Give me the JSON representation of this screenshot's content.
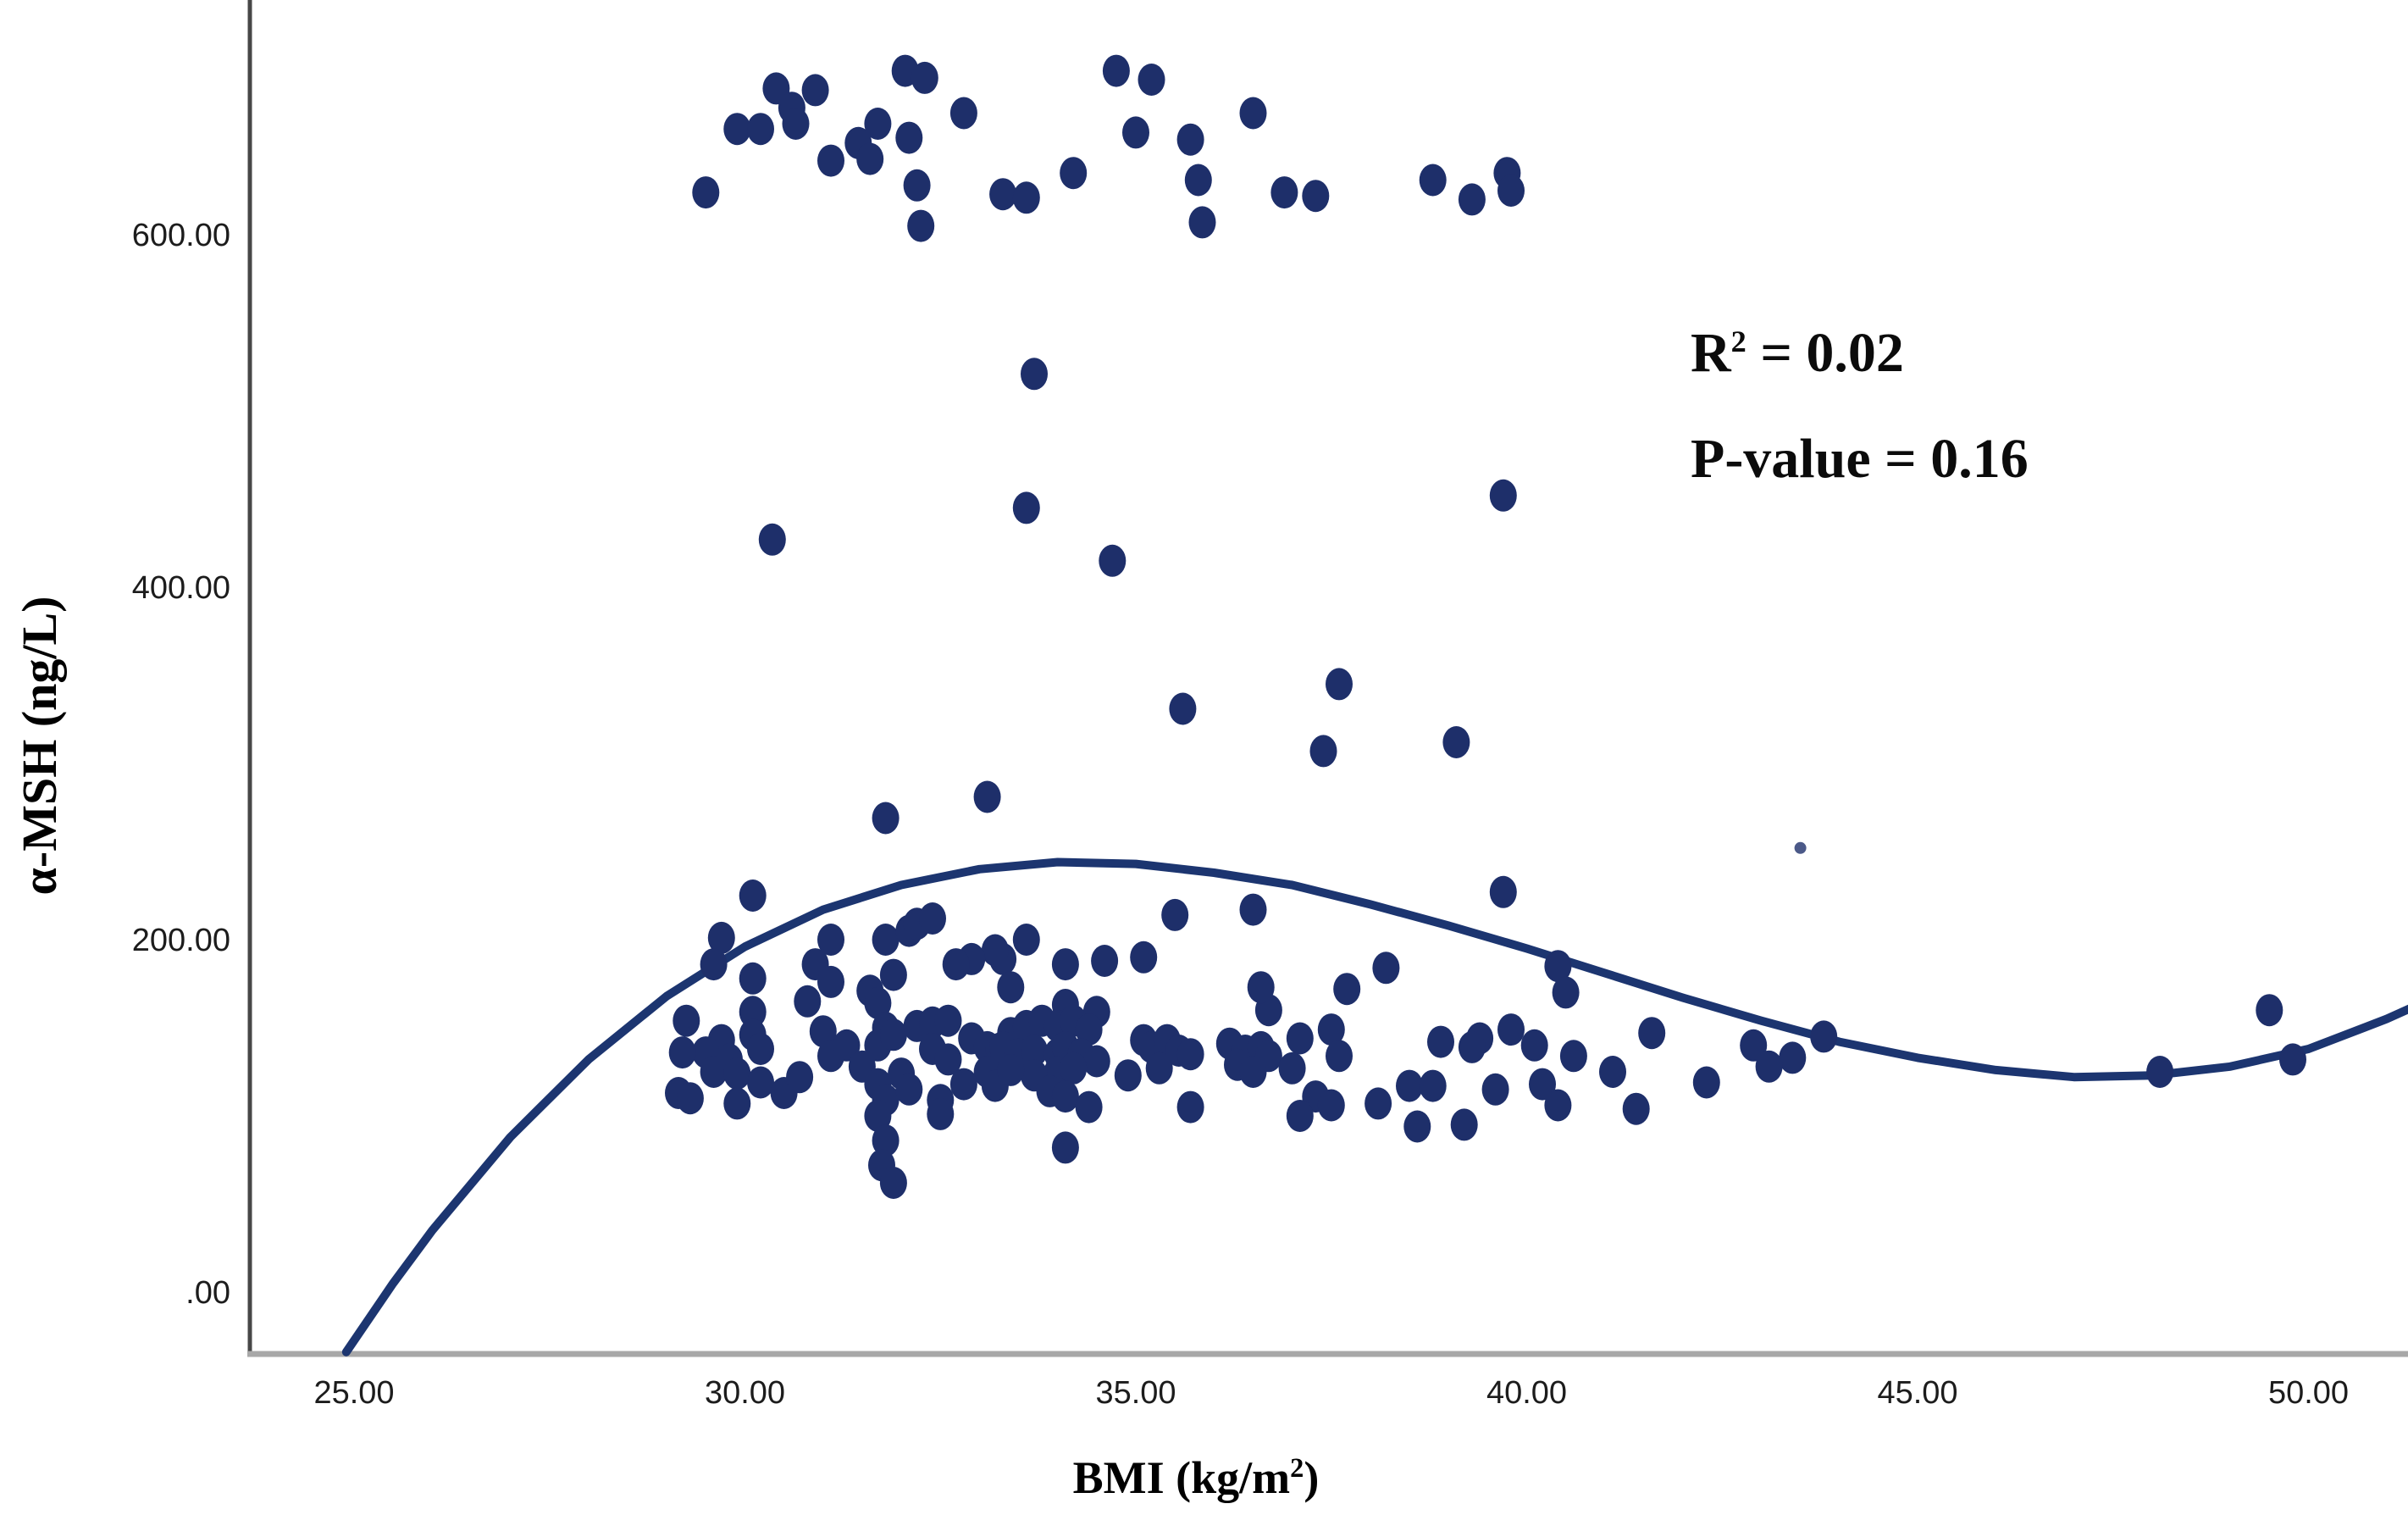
{
  "chart_data": {
    "type": "scatter",
    "title": "",
    "xlabel": "BMI (kg/m²)",
    "xlabel_base": "BMI (kg/m",
    "xlabel_sup": "2",
    "xlabel_close": ")",
    "ylabel": "α-MSH (ng/L)",
    "xlim": [
      23.6,
      51.3
    ],
    "ylim": [
      -35,
      735
    ],
    "grid": false,
    "legend": false,
    "x_ticks": {
      "values": [
        25,
        30,
        35,
        40,
        45,
        50
      ],
      "labels": [
        "25.00",
        "30.00",
        "35.00",
        "40.00",
        "45.00",
        "50.00"
      ]
    },
    "y_ticks": {
      "values": [
        0,
        200,
        400,
        600
      ],
      "labels": [
        ".00",
        "200.00",
        "400.00",
        "600.00"
      ]
    },
    "annotation": {
      "r_label": "R",
      "r_exponent": "2",
      "r_rest": " = 0.02",
      "p_text": "P-value = 0.16",
      "full_text": "R² = 0.02 ; P-value = 0.16"
    },
    "colors": {
      "point": "#1e2f6a",
      "curve": "#1c3570",
      "x_axis": "#a8a8a8",
      "y_axis": "#474747",
      "tick_label": "#1c1c1c"
    },
    "marker": {
      "shape": "ellipse",
      "rx": 16,
      "ry": 19
    },
    "points": [
      [
        29.5,
        624
      ],
      [
        29.9,
        660
      ],
      [
        30.2,
        660
      ],
      [
        30.4,
        683
      ],
      [
        30.6,
        672
      ],
      [
        30.65,
        663
      ],
      [
        30.9,
        682
      ],
      [
        31.1,
        642
      ],
      [
        31.45,
        652
      ],
      [
        31.6,
        643
      ],
      [
        31.7,
        663
      ],
      [
        32.05,
        693
      ],
      [
        32.3,
        689
      ],
      [
        32.1,
        655
      ],
      [
        32.2,
        628
      ],
      [
        32.25,
        605
      ],
      [
        32.8,
        669
      ],
      [
        33.3,
        623
      ],
      [
        33.6,
        621
      ],
      [
        34.2,
        635
      ],
      [
        34.75,
        693
      ],
      [
        35.2,
        688
      ],
      [
        35.0,
        658
      ],
      [
        35.7,
        654
      ],
      [
        35.8,
        631
      ],
      [
        35.85,
        607
      ],
      [
        36.5,
        669
      ],
      [
        36.9,
        624
      ],
      [
        37.3,
        622
      ],
      [
        38.8,
        631
      ],
      [
        39.3,
        620
      ],
      [
        39.75,
        635
      ],
      [
        39.8,
        625
      ],
      [
        33.7,
        521
      ],
      [
        33.6,
        445
      ],
      [
        30.35,
        427
      ],
      [
        34.7,
        415
      ],
      [
        39.7,
        452
      ],
      [
        35.6,
        331
      ],
      [
        37.6,
        345
      ],
      [
        37.4,
        307
      ],
      [
        39.1,
        312
      ],
      [
        33.1,
        281
      ],
      [
        31.8,
        269
      ],
      [
        30.1,
        225
      ],
      [
        29.7,
        201
      ],
      [
        31.1,
        200
      ],
      [
        31.8,
        200
      ],
      [
        32.1,
        205
      ],
      [
        32.2,
        209
      ],
      [
        32.4,
        212
      ],
      [
        33.6,
        200
      ],
      [
        35.5,
        214
      ],
      [
        36.5,
        217
      ],
      [
        39.7,
        227
      ],
      [
        33.3,
        189
      ],
      [
        34.1,
        186
      ],
      [
        34.6,
        188
      ],
      [
        35.1,
        190
      ],
      [
        33.2,
        194
      ],
      [
        32.9,
        189
      ],
      [
        32.7,
        186
      ],
      [
        30.1,
        178
      ],
      [
        29.6,
        186
      ],
      [
        30.9,
        186
      ],
      [
        31.1,
        176
      ],
      [
        31.9,
        180
      ],
      [
        38.2,
        184
      ],
      [
        40.4,
        185
      ],
      [
        40.5,
        170
      ],
      [
        37.7,
        172
      ],
      [
        36.7,
        160
      ],
      [
        33.4,
        173
      ],
      [
        36.6,
        173
      ],
      [
        34.1,
        163
      ],
      [
        34.5,
        159
      ],
      [
        30.8,
        165
      ],
      [
        31.6,
        171
      ],
      [
        31.7,
        164
      ],
      [
        30.1,
        159
      ],
      [
        30.1,
        146
      ],
      [
        29.7,
        143
      ],
      [
        29.5,
        136
      ],
      [
        29.8,
        132
      ],
      [
        30.2,
        138
      ],
      [
        31.0,
        148
      ],
      [
        31.1,
        134
      ],
      [
        31.3,
        140
      ],
      [
        31.5,
        128
      ],
      [
        31.7,
        140
      ],
      [
        31.8,
        150
      ],
      [
        31.9,
        146
      ],
      [
        32.2,
        151
      ],
      [
        32.4,
        153
      ],
      [
        32.6,
        154
      ],
      [
        32.4,
        138
      ],
      [
        32.6,
        132
      ],
      [
        32.9,
        144
      ],
      [
        33.1,
        139
      ],
      [
        33.25,
        138
      ],
      [
        33.4,
        147
      ],
      [
        33.6,
        151
      ],
      [
        33.8,
        154
      ],
      [
        34.0,
        151
      ],
      [
        34.2,
        154
      ],
      [
        34.4,
        149
      ],
      [
        33.3,
        139
      ],
      [
        33.5,
        135
      ],
      [
        33.7,
        137
      ],
      [
        34.0,
        135
      ],
      [
        34.1,
        139
      ],
      [
        34.3,
        135
      ],
      [
        34.5,
        131
      ],
      [
        35.1,
        143
      ],
      [
        35.2,
        139
      ],
      [
        35.4,
        143
      ],
      [
        35.55,
        137
      ],
      [
        35.7,
        135
      ],
      [
        36.2,
        141
      ],
      [
        36.4,
        137
      ],
      [
        36.6,
        139
      ],
      [
        37.1,
        144
      ],
      [
        37.5,
        149
      ],
      [
        39.4,
        144
      ],
      [
        39.3,
        139
      ],
      [
        38.9,
        142
      ],
      [
        41.6,
        147
      ],
      [
        42.9,
        140
      ],
      [
        43.4,
        133
      ],
      [
        43.8,
        145
      ],
      [
        36.7,
        134
      ],
      [
        37.6,
        134
      ],
      [
        40.1,
        140
      ],
      [
        39.8,
        149
      ],
      [
        40.6,
        134
      ],
      [
        41.1,
        125
      ],
      [
        33.1,
        125
      ],
      [
        34.0,
        125
      ],
      [
        34.2,
        127
      ],
      [
        34.9,
        123
      ],
      [
        35.3,
        127
      ],
      [
        36.3,
        129
      ],
      [
        29.25,
        154
      ],
      [
        29.2,
        136
      ],
      [
        29.6,
        125
      ],
      [
        29.9,
        124
      ],
      [
        30.2,
        119
      ],
      [
        30.5,
        113
      ],
      [
        30.7,
        122
      ],
      [
        29.9,
        107
      ],
      [
        31.7,
        118
      ],
      [
        31.8,
        109
      ],
      [
        32.0,
        124
      ],
      [
        32.1,
        115
      ],
      [
        32.5,
        109
      ],
      [
        33.2,
        117
      ],
      [
        32.8,
        118
      ],
      [
        33.7,
        123
      ],
      [
        33.4,
        126
      ],
      [
        33.9,
        114
      ],
      [
        34.1,
        111
      ],
      [
        36.5,
        125
      ],
      [
        37.0,
        127
      ],
      [
        39.6,
        115
      ],
      [
        40.2,
        118
      ],
      [
        42.3,
        119
      ],
      [
        43.1,
        128
      ],
      [
        48.1,
        125
      ],
      [
        49.8,
        132
      ],
      [
        49.5,
        160
      ],
      [
        37.3,
        111
      ],
      [
        37.5,
        106
      ],
      [
        37.1,
        100
      ],
      [
        38.1,
        107
      ],
      [
        38.5,
        117
      ],
      [
        38.8,
        117
      ],
      [
        38.6,
        94
      ],
      [
        39.2,
        95
      ],
      [
        29.15,
        113
      ],
      [
        29.3,
        110
      ],
      [
        40.4,
        106
      ],
      [
        41.4,
        104
      ],
      [
        34.4,
        105
      ],
      [
        35.7,
        105
      ],
      [
        31.7,
        100
      ],
      [
        32.5,
        101
      ],
      [
        31.8,
        86
      ],
      [
        31.75,
        72
      ],
      [
        31.9,
        62
      ],
      [
        34.1,
        82
      ]
    ],
    "faint_dot": [
      43.5,
      252
    ],
    "fit_curve": {
      "type": "cubic",
      "points": [
        [
          24.9,
          -34
        ],
        [
          25.5,
          5
        ],
        [
          26,
          35
        ],
        [
          27,
          88
        ],
        [
          28,
          132
        ],
        [
          29,
          168
        ],
        [
          30,
          196
        ],
        [
          31,
          217
        ],
        [
          32,
          231
        ],
        [
          33,
          240
        ],
        [
          34,
          244
        ],
        [
          35,
          243
        ],
        [
          36,
          238
        ],
        [
          37,
          231
        ],
        [
          38,
          220
        ],
        [
          39,
          208
        ],
        [
          40,
          195
        ],
        [
          41,
          181
        ],
        [
          42,
          167
        ],
        [
          43,
          154
        ],
        [
          44,
          142
        ],
        [
          45,
          133
        ],
        [
          46,
          126
        ],
        [
          47,
          122
        ],
        [
          48,
          123
        ],
        [
          49,
          128
        ],
        [
          50,
          138
        ],
        [
          51,
          155
        ],
        [
          51.3,
          161
        ]
      ]
    }
  }
}
